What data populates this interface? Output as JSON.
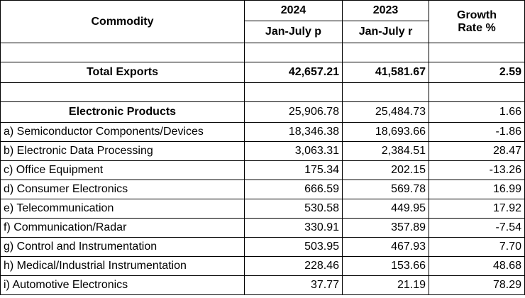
{
  "header": {
    "commodity": "Commodity",
    "year_2024": "2024",
    "year_2023": "2023",
    "period_2024": "Jan-July p",
    "period_2023": "Jan-July r",
    "growth_line1": "Growth",
    "growth_line2": "Rate %"
  },
  "total": {
    "label": "Total Exports",
    "v2024": "42,657.21",
    "v2023": "41,581.67",
    "growth": "2.59"
  },
  "group": {
    "label": "Electronic Products",
    "v2024": "25,906.78",
    "v2023": "25,484.73",
    "growth": "1.66"
  },
  "rows": [
    {
      "label": "a) Semiconductor Components/Devices",
      "v2024": "18,346.38",
      "v2023": "18,693.66",
      "growth": "-1.86"
    },
    {
      "label": "b) Electronic Data Processing",
      "v2024": "3,063.31",
      "v2023": "2,384.51",
      "growth": "28.47"
    },
    {
      "label": "c) Office Equipment",
      "v2024": "175.34",
      "v2023": "202.15",
      "growth": "-13.26"
    },
    {
      "label": "d) Consumer Electronics",
      "v2024": "666.59",
      "v2023": "569.78",
      "growth": "16.99"
    },
    {
      "label": "e) Telecommunication",
      "v2024": "530.58",
      "v2023": "449.95",
      "growth": "17.92"
    },
    {
      "label": "f) Communication/Radar",
      "v2024": "330.91",
      "v2023": "357.89",
      "growth": "-7.54"
    },
    {
      "label": "g) Control and Instrumentation",
      "v2024": "503.95",
      "v2023": "467.93",
      "growth": "7.70"
    },
    {
      "label": "h) Medical/Industrial Instrumentation",
      "v2024": "228.46",
      "v2023": "153.66",
      "growth": "48.68"
    },
    {
      "label": "i) Automotive Electronics",
      "v2024": "37.77",
      "v2023": "21.19",
      "growth": "78.29"
    }
  ]
}
